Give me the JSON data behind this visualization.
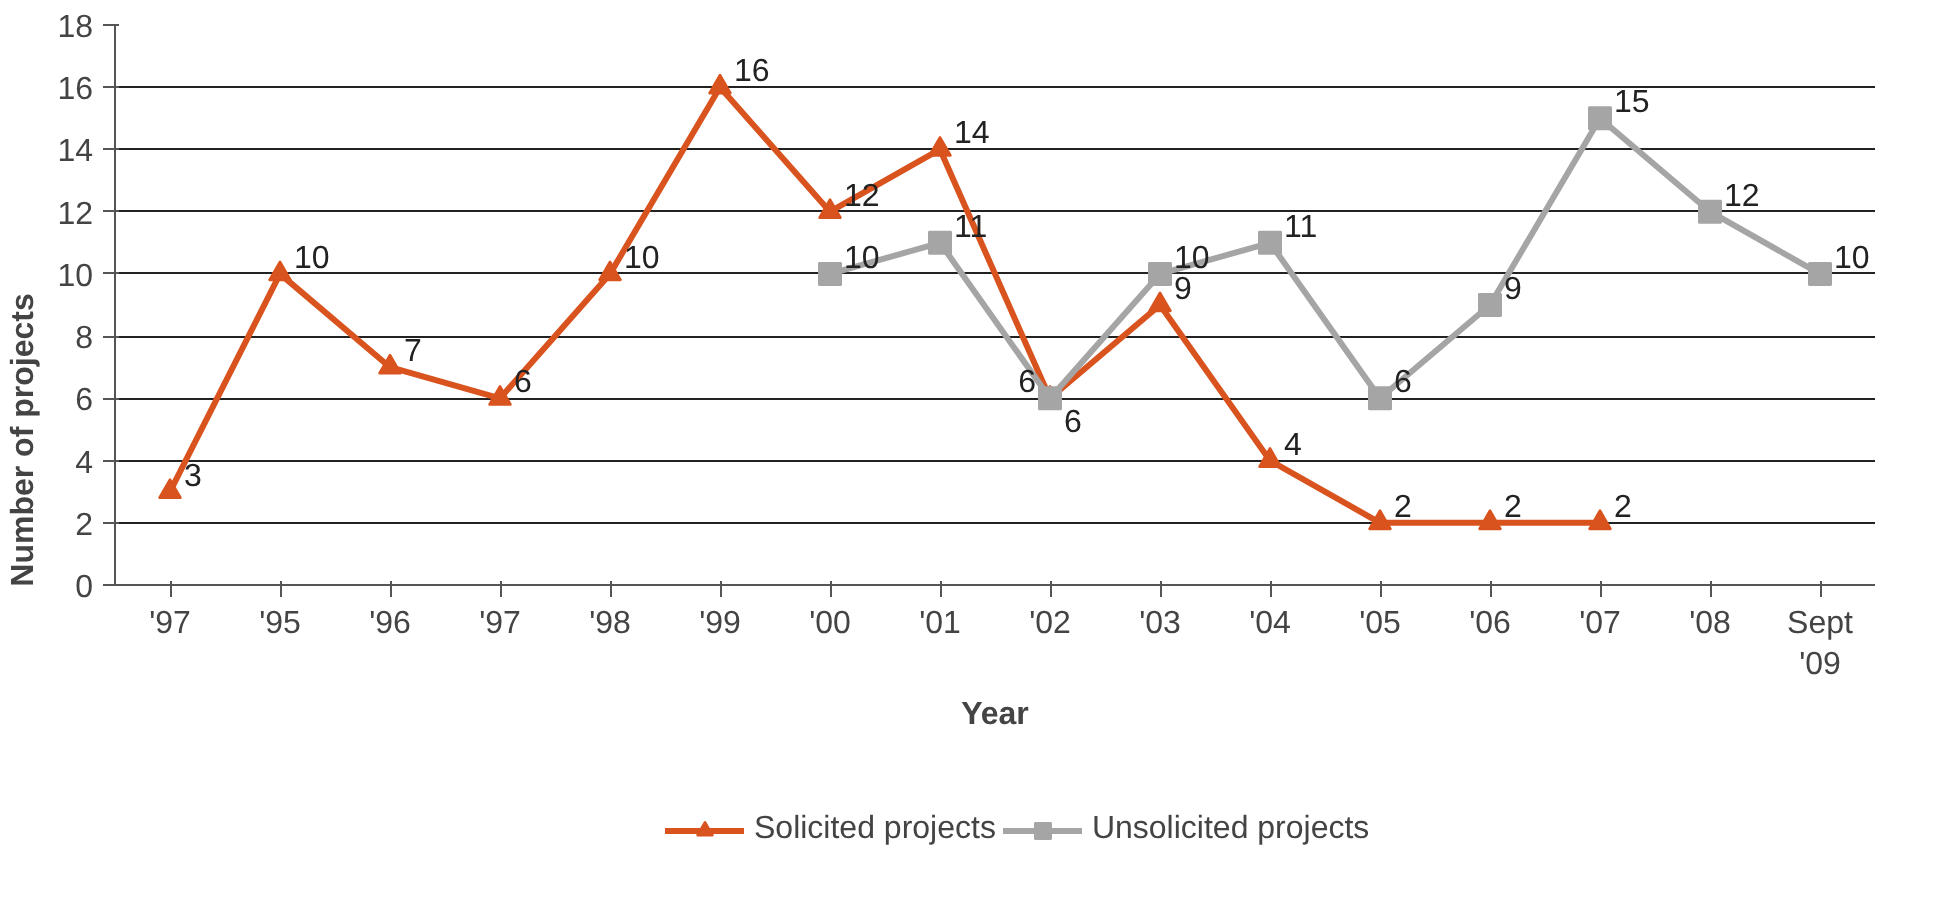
{
  "chart_data": {
    "type": "line",
    "xlabel": "Year",
    "ylabel": "Number of projects",
    "categories": [
      "'97",
      "'95",
      "'96",
      "'97",
      "'98",
      "'99",
      "'00",
      "'01",
      "'02",
      "'03",
      "'04",
      "'05",
      "'06",
      "'07",
      "'08",
      "Sept\n'09"
    ],
    "ylim": [
      0,
      18
    ],
    "yticks": [
      0,
      2,
      4,
      6,
      8,
      10,
      12,
      14,
      16,
      18
    ],
    "grid": "y",
    "legend": "bottom",
    "data_labels": true,
    "series": [
      {
        "name": "Solicited projects",
        "color": "#d9531e",
        "marker": "triangle",
        "values": [
          3,
          10,
          7,
          6,
          10,
          16,
          12,
          14,
          6,
          9,
          4,
          2,
          2,
          2,
          null,
          null
        ]
      },
      {
        "name": "Unsolicited projects",
        "color": "#a5a5a5",
        "marker": "square",
        "values": [
          null,
          null,
          null,
          null,
          null,
          null,
          10,
          11,
          6,
          10,
          11,
          6,
          9,
          15,
          12,
          10
        ]
      }
    ]
  }
}
